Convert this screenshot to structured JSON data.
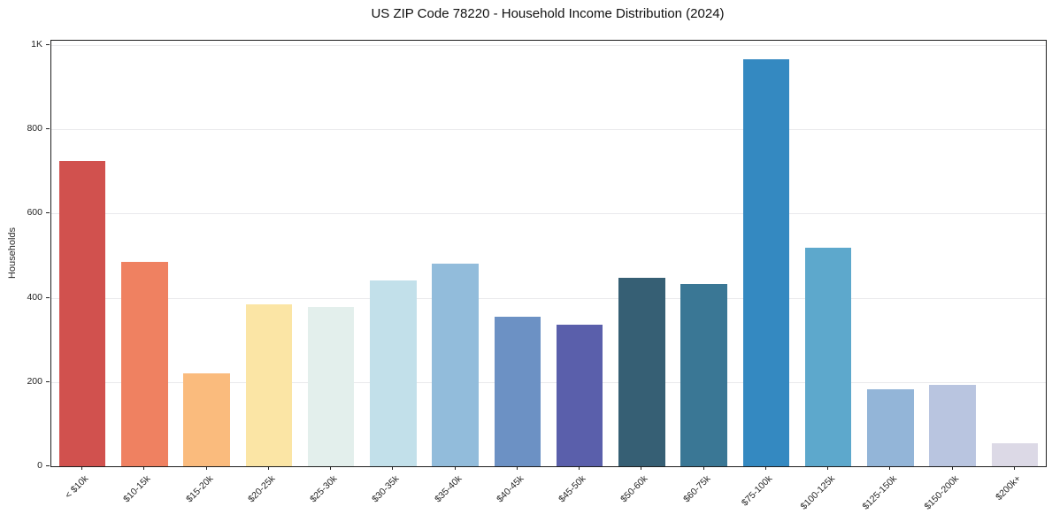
{
  "chart_data": {
    "type": "bar",
    "title": "US ZIP Code 78220 - Household Income Distribution (2024)",
    "xlabel": "",
    "ylabel": "Households",
    "categories": [
      "< $10k",
      "$10-15k",
      "$15-20k",
      "$20-25k",
      "$25-30k",
      "$30-35k",
      "$35-40k",
      "$40-45k",
      "$45-50k",
      "$50-60k",
      "$60-75k",
      "$75-100k",
      "$100-125k",
      "$125-150k",
      "$150-200k",
      "$200k+"
    ],
    "values": [
      725,
      485,
      220,
      385,
      377,
      440,
      480,
      355,
      336,
      447,
      432,
      965,
      519,
      182,
      193,
      54
    ],
    "bar_colors": [
      "#d1514e",
      "#ef8161",
      "#fabb7d",
      "#fbe5a5",
      "#e3efec",
      "#c2e0ea",
      "#92bcdb",
      "#6c91c4",
      "#5a5fab",
      "#365f74",
      "#3a7795",
      "#3489c1",
      "#5da8cc",
      "#93b5d8",
      "#b9c5e0",
      "#dcd9e6"
    ],
    "ylim": [
      0,
      1010
    ],
    "yticks": [
      {
        "value": 0,
        "label": "0"
      },
      {
        "value": 200,
        "label": "200"
      },
      {
        "value": 400,
        "label": "400"
      },
      {
        "value": 600,
        "label": "600"
      },
      {
        "value": 800,
        "label": "800"
      },
      {
        "value": 1000,
        "label": "1K"
      }
    ],
    "grid": true,
    "legend": null,
    "background": "#ffffff",
    "frame_color": "#1f1f1f",
    "gridline_color": "#e9e9ec",
    "bar_width_fraction": 0.75
  }
}
